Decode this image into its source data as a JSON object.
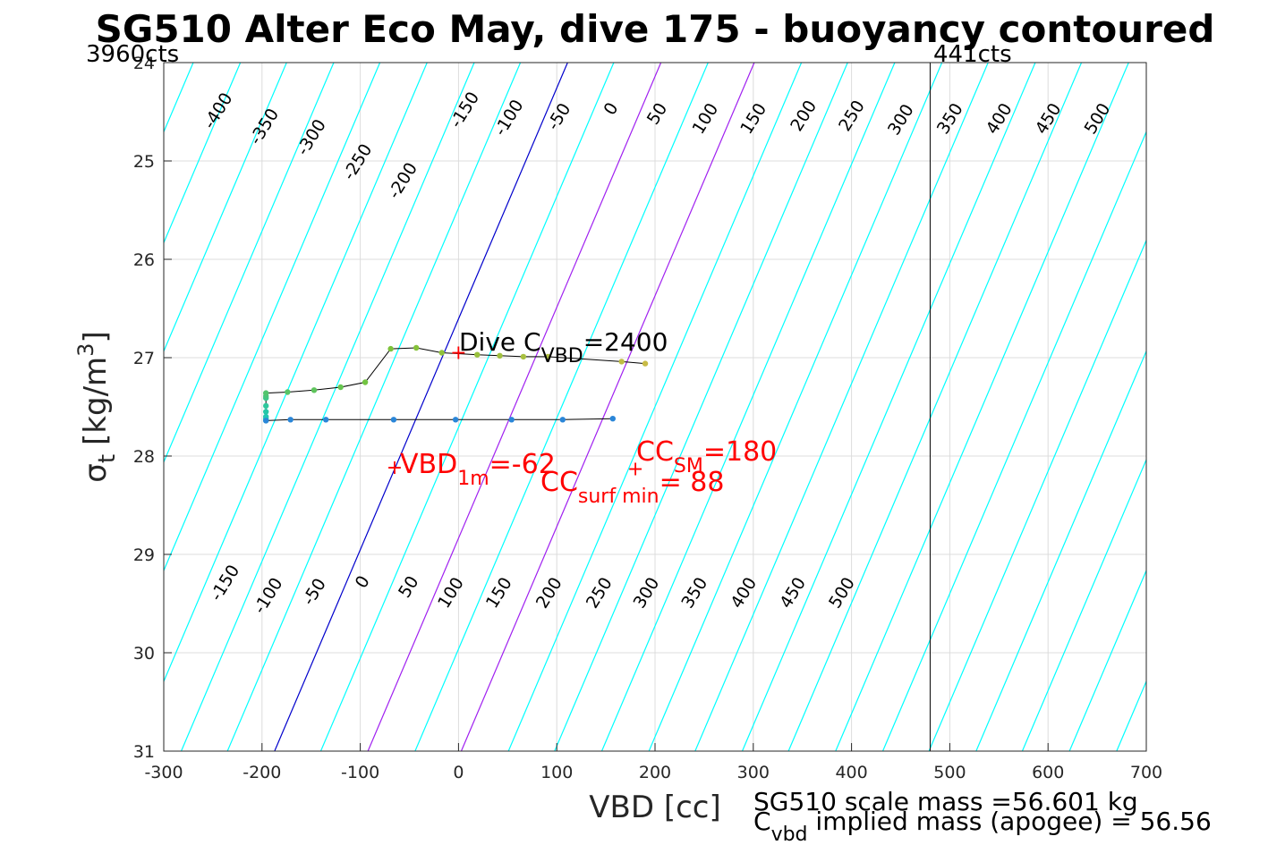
{
  "chart_data": {
    "type": "line",
    "title": "SG510 Alter Eco May, dive 175 - buoyancy contoured",
    "xlabel": "VBD [cc]",
    "ylabel_symbol": "σ",
    "ylabel_sub": "t",
    "ylabel_units": "[kg/m",
    "ylabel_sup": "3",
    "ylabel_close": "]",
    "xlim": [
      -300,
      700
    ],
    "ylim": [
      24,
      31
    ],
    "y_reversed": true,
    "grid": true,
    "xticks": [
      -300,
      -200,
      -100,
      0,
      100,
      200,
      300,
      400,
      500,
      600,
      700
    ],
    "yticks": [
      24,
      25,
      26,
      27,
      28,
      29,
      30,
      31
    ],
    "xtick_labels": [
      "-300",
      "-200",
      "-100",
      "0",
      "100",
      "200",
      "300",
      "400",
      "500",
      "600",
      "700"
    ],
    "ytick_labels": [
      "24",
      "25",
      "26",
      "27",
      "28",
      "29",
      "30",
      "31"
    ],
    "top_left_label": "3960cts",
    "top_right_label": "441cts",
    "vertical_limit_x": 480,
    "buoyancy_contours": [
      {
        "level": -400,
        "x_at_24": -270
      },
      {
        "level": -350,
        "x_at_24": -222
      },
      {
        "level": -300,
        "x_at_24": -175
      },
      {
        "level": -250,
        "x_at_24": -127
      },
      {
        "level": -200,
        "x_at_24": -80
      },
      {
        "level": -150,
        "x_at_24": -32
      },
      {
        "level": -100,
        "x_at_24": 16
      },
      {
        "level": -50,
        "x_at_24": 63
      },
      {
        "level": 0,
        "x_at_24": 111
      },
      {
        "level": 50,
        "x_at_24": 158
      },
      {
        "level": 100,
        "x_at_24": 206
      },
      {
        "level": 150,
        "x_at_24": 254
      },
      {
        "level": 200,
        "x_at_24": 301
      },
      {
        "level": 250,
        "x_at_24": 349
      },
      {
        "level": 300,
        "x_at_24": 396
      },
      {
        "level": 350,
        "x_at_24": 444
      },
      {
        "level": 400,
        "x_at_24": 492
      },
      {
        "level": 450,
        "x_at_24": 539
      },
      {
        "level": 500,
        "x_at_24": 587
      },
      {
        "level": 550,
        "x_at_24": 634
      },
      {
        "level": 600,
        "x_at_24": 682
      },
      {
        "level": 650,
        "x_at_24": 730
      },
      {
        "level": 700,
        "x_at_24": 777
      },
      {
        "level": 750,
        "x_at_24": 825
      },
      {
        "level": 800,
        "x_at_24": 872
      },
      {
        "level": 850,
        "x_at_24": 920
      },
      {
        "level": 900,
        "x_at_24": 968
      }
    ],
    "contour_slope_x_per_sigma": -42.6,
    "neutral_contour_level": 0,
    "highlight_contour_levels": [
      100,
      200
    ],
    "top_contour_labels": [
      {
        "text": "-400",
        "x": -240,
        "y": 24.52
      },
      {
        "text": "-350",
        "x": -193,
        "y": 24.68
      },
      {
        "text": "-300",
        "x": -145,
        "y": 24.79
      },
      {
        "text": "-250",
        "x": -98,
        "y": 25.04
      },
      {
        "text": "-200",
        "x": -52,
        "y": 25.23
      },
      {
        "text": "-150",
        "x": 11,
        "y": 24.51
      },
      {
        "text": "-100",
        "x": 56,
        "y": 24.59
      },
      {
        "text": "-50",
        "x": 107,
        "y": 24.58
      },
      {
        "text": "0",
        "x": 160,
        "y": 24.5
      },
      {
        "text": "50",
        "x": 207,
        "y": 24.55
      },
      {
        "text": "100",
        "x": 256,
        "y": 24.6
      },
      {
        "text": "150",
        "x": 305,
        "y": 24.6
      },
      {
        "text": "200",
        "x": 356,
        "y": 24.57
      },
      {
        "text": "250",
        "x": 405,
        "y": 24.57
      },
      {
        "text": "300",
        "x": 455,
        "y": 24.61
      },
      {
        "text": "350",
        "x": 505,
        "y": 24.6
      },
      {
        "text": "400",
        "x": 555,
        "y": 24.6
      },
      {
        "text": "450",
        "x": 605,
        "y": 24.6
      },
      {
        "text": "500",
        "x": 655,
        "y": 24.6
      }
    ],
    "bottom_contour_labels": [
      {
        "text": "-150",
        "x": -233,
        "y": 29.32
      },
      {
        "text": "-100",
        "x": -189,
        "y": 29.45
      },
      {
        "text": "-50",
        "x": -142,
        "y": 29.41
      },
      {
        "text": "0",
        "x": -93,
        "y": 29.31
      },
      {
        "text": "50",
        "x": -46,
        "y": 29.36
      },
      {
        "text": "100",
        "x": -3,
        "y": 29.42
      },
      {
        "text": "150",
        "x": 46,
        "y": 29.42
      },
      {
        "text": "200",
        "x": 97,
        "y": 29.42
      },
      {
        "text": "250",
        "x": 148,
        "y": 29.42
      },
      {
        "text": "300",
        "x": 196,
        "y": 29.42
      },
      {
        "text": "350",
        "x": 245,
        "y": 29.42
      },
      {
        "text": "400",
        "x": 295,
        "y": 29.42
      },
      {
        "text": "450",
        "x": 345,
        "y": 29.42
      },
      {
        "text": "500",
        "x": 395,
        "y": 29.42
      }
    ],
    "series": [
      {
        "x": [
          -196,
          -196,
          -196,
          -196,
          -196,
          -196,
          -196,
          -196,
          -174,
          -147,
          -120,
          -95,
          -69,
          -43,
          -17,
          19,
          42,
          66,
          91,
          166,
          190
        ],
        "y": [
          27.64,
          27.62,
          27.6,
          27.55,
          27.49,
          27.41,
          27.39,
          27.36,
          27.35,
          27.33,
          27.3,
          27.25,
          26.91,
          26.9,
          26.95,
          26.97,
          26.98,
          26.99,
          26.99,
          27.04,
          27.06
        ],
        "colors": [
          "#1fbfc0",
          "#1fbfc0",
          "#21c4b4",
          "#24c6a8",
          "#2ec79c",
          "#3cc68a",
          "#47c47c",
          "#52c46d",
          "#57c465",
          "#5ec45c",
          "#66c550",
          "#72c441",
          "#7cc23a",
          "#86c23a",
          "#90c23a",
          "#98c03c",
          "#a0c03e",
          "#a8c040",
          "#b0c042",
          "#c0bd44",
          "#c8bb46"
        ]
      },
      {
        "x": [
          -196,
          -171,
          -135,
          -66,
          -3,
          54,
          106,
          157
        ],
        "y": [
          27.64,
          27.63,
          27.63,
          27.63,
          27.63,
          27.63,
          27.63,
          27.62
        ],
        "colors": [
          "#2a86d8",
          "#2a86d8",
          "#2a86d8",
          "#2a86d8",
          "#2a86d8",
          "#2a86d8",
          "#2a86d8",
          "#2a86d8"
        ]
      }
    ],
    "surface_bar": {
      "x": 194,
      "y_from": 27.08,
      "y_to": 28.13,
      "color_top": "#c0b83a",
      "color_mid": "#e8a838",
      "color_bot": "#f5ee10"
    },
    "markers": [
      {
        "x": 0,
        "y": 26.95,
        "label": "Dive C",
        "sub": "VBD",
        "suffix": "=2400",
        "color": "#000000"
      },
      {
        "x": -65,
        "y": 28.12,
        "label": "VBD",
        "sub": "1m",
        "suffix": "=-62",
        "color": "#ff0000"
      },
      {
        "x": 180,
        "y": 28.13,
        "label": "CC",
        "sub": "SM",
        "suffix": "=180",
        "color": "#ff0000"
      },
      {
        "label": "CC",
        "sub": "surf min",
        "suffix": "= 88",
        "color": "#ff0000"
      }
    ],
    "footer_line1": "SG510 scale mass =56.601 kg",
    "footer_line2_prefix": "C",
    "footer_line2_sub": "vbd",
    "footer_line2_rest": " implied mass (apogee) = 56.56",
    "colors": {
      "contour": "#00ffff",
      "neutral": "#0000cc",
      "highlight": "#a020f0",
      "marker": "#ff0000",
      "track": "#000000",
      "grid": "#dcdcdc"
    }
  }
}
